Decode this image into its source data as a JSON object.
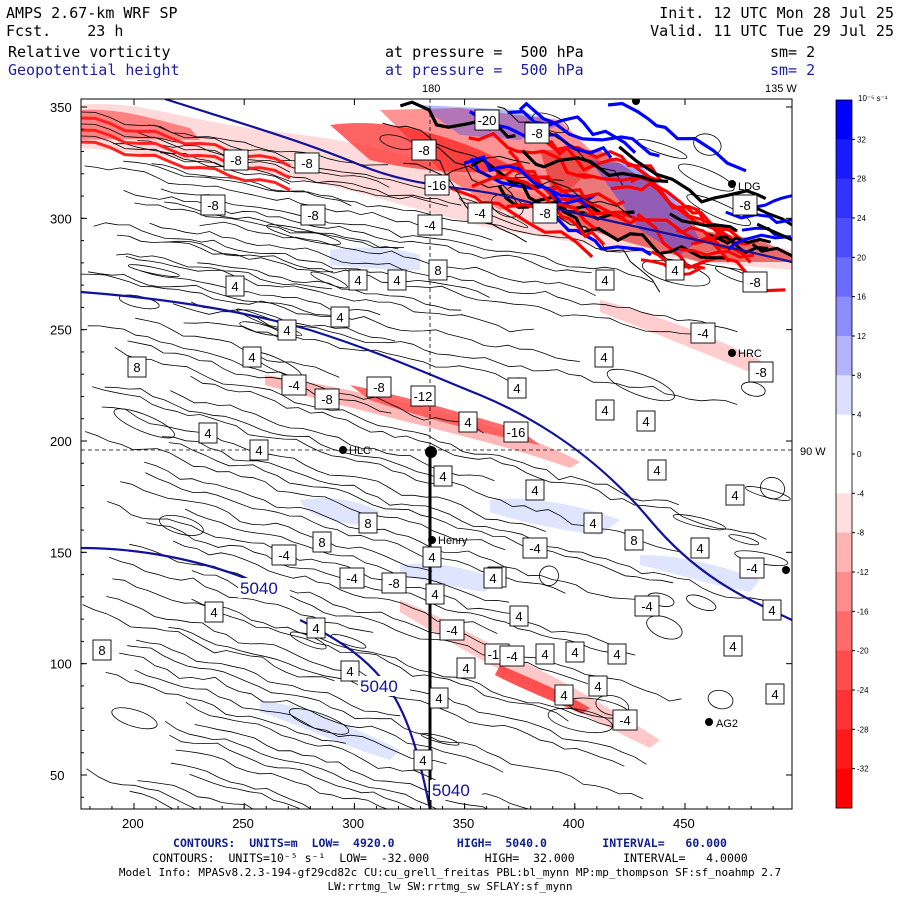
{
  "header": {
    "model": "AMPS 2.67-km WRF SP",
    "fcst_label": "Fcst.",
    "fcst_value": "23 h",
    "init": "Init. 12 UTC Mon 28 Jul 25",
    "valid": "Valid. 11 UTC Tue 29 Jul 25",
    "field1": "Relative vorticity",
    "field2": "Geopotential height",
    "pressure1": "at pressure =  500 hPa",
    "pressure2": "at pressure =  500 hPa",
    "sm1": "sm= 2",
    "sm2": "sm= 2"
  },
  "map": {
    "lon_label_top_1": "180",
    "lon_label_top_2": "135 W",
    "lon_label_right": "90 W",
    "x_ticks": [
      "200",
      "250",
      "300",
      "350",
      "400",
      "450"
    ],
    "y_ticks": [
      "50",
      "100",
      "150",
      "200",
      "250",
      "300",
      "350"
    ],
    "stations": [
      {
        "name": "HLC"
      },
      {
        "name": "Henry"
      },
      {
        "name": "HRC"
      },
      {
        "name": "AG2"
      },
      {
        "name": "LDG"
      }
    ],
    "height_contour_labels": [
      "5040",
      "5040",
      "5040"
    ],
    "vorticity_labels": [
      "-8",
      "-8",
      "-8",
      "-8",
      "-8",
      "-20",
      "-8",
      "-16",
      "-4",
      "-4",
      "-8",
      "-8",
      "8",
      "4",
      "4",
      "4",
      "4",
      "4",
      "4",
      "8",
      "4",
      "4",
      "-8",
      "4",
      "4",
      "-4",
      "-8",
      "-12",
      "4",
      "4",
      "-8",
      "-16",
      "4",
      "4",
      "-4",
      "-8",
      "4",
      "4",
      "4",
      "4",
      "4",
      "8",
      "4",
      "8",
      "4",
      "8",
      "-4",
      "4",
      "4",
      "-4",
      "-8",
      "-4",
      "4",
      "4",
      "-4",
      "4",
      "-4",
      "4",
      "-4",
      "4",
      "-12",
      "4",
      "-4",
      "8",
      "4",
      "4",
      "4",
      "4",
      "4",
      "4",
      "4",
      "4",
      "4",
      "4",
      "-4",
      "4"
    ]
  },
  "colorbar": {
    "unit": "10⁻⁵ s⁻¹",
    "ticks": [
      "32",
      "28",
      "24",
      "20",
      "16",
      "12",
      "8",
      "4",
      "0",
      "-4",
      "-8",
      "-12",
      "-16",
      "-20",
      "-24",
      "-28",
      "-32"
    ]
  },
  "footer": {
    "line1": "CONTOURS:  UNITS=m  LOW=  4920.0         HIGH=  5040.0        INTERVAL=   60.000",
    "line2": "CONTOURS:  UNITS=10⁻⁵ s⁻¹  LOW=  -32.000        HIGH=  32.000       INTERVAL=   4.0000",
    "line3": "Model Info: MPASv8.2.3-194-gf29cd82c CU:cu_grell_freitas PBL:bl_mynn MP:mp_thompson SF:sf_noahmp 2.7",
    "line4": "LW:rrtmg_lw SW:rrtmg_sw SFLAY:sf_mynn"
  },
  "colors": {
    "pos_dark": "#0000ff",
    "neg_dark": "#ff0000",
    "height_contour": "#12129a"
  }
}
